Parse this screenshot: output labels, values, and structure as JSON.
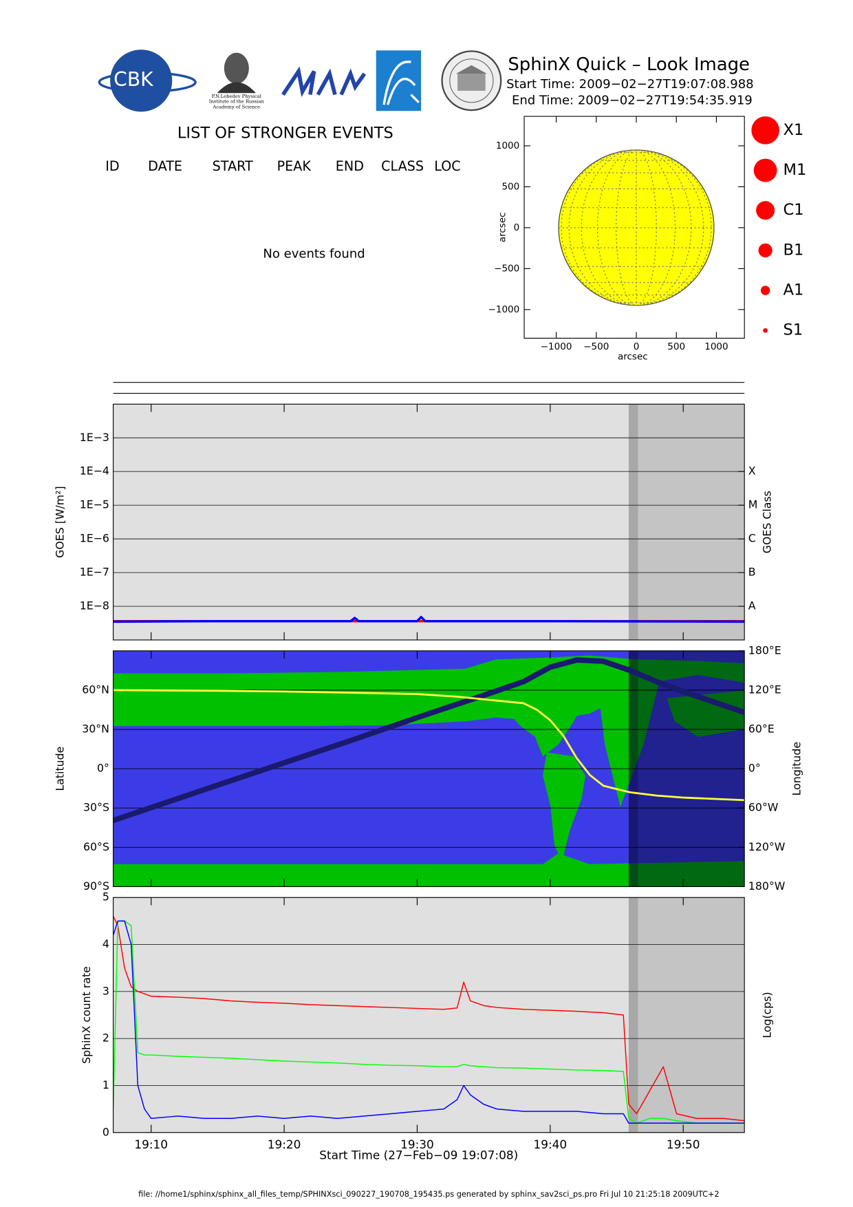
{
  "header": {
    "title": "SphinX Quick – Look Image",
    "start": "Start Time: 2009−02−27T19:07:08.988",
    "end": "End Time: 2009−02−27T19:54:35.919",
    "logo_text": "CBK",
    "lebedev": [
      "P.N.Lebedev Physical",
      "Institute of the Russian",
      "Academy of Science"
    ]
  },
  "events": {
    "heading": "LIST OF STRONGER EVENTS",
    "columns": [
      "ID",
      "DATE",
      "START",
      "PEAK",
      "END",
      "CLASS",
      "LOC"
    ],
    "message": "No events found"
  },
  "footer": "file: //home1/sphinx/sphinx_all_files_temp/SPHINXsci_090227_190708_195435.ps generated by sphinx_sav2sci_ps.pro Fri Jul 10 21:25:18 2009UTC+2",
  "chart_data": [
    {
      "type": "disk",
      "xlabel": "arcsec",
      "ylabel": "arcsec",
      "xlim": [
        -1400,
        1350
      ],
      "ylim": [
        -1350,
        1360
      ],
      "xticks": [
        {
          "value": -1000,
          "label": "−1000"
        },
        {
          "value": -500,
          "label": "−500"
        },
        0,
        500,
        1000
      ],
      "yticks": [
        1000,
        500,
        0,
        {
          "value": -500,
          "label": "−500"
        },
        {
          "value": -1000,
          "label": "−1000"
        }
      ],
      "disk_radius": 970,
      "color": "#ffff00",
      "grid": true,
      "legend": [
        "X1",
        "M1",
        "C1",
        "B1",
        "A1",
        "S1"
      ],
      "legend_color": "#ff0000"
    },
    {
      "type": "line",
      "ylabel": "GOES [W/m²]",
      "y2label": "GOES Class",
      "log_scale": true,
      "grid": true,
      "xlim": [
        7.15,
        54.6
      ],
      "ylim": [
        1e-09,
        0.01
      ],
      "yticks": [
        {
          "value": 0.001,
          "label": "1E−3"
        },
        {
          "value": 0.0001,
          "label": "1E−4"
        },
        {
          "value": 1e-05,
          "label": "1E−5"
        },
        {
          "value": 1e-06,
          "label": "1E−6"
        },
        {
          "value": 1e-07,
          "label": "1E−7"
        },
        {
          "value": 1e-08,
          "label": "1E−8"
        }
      ],
      "y2lim": [
        1e-09,
        0.01
      ],
      "y2ticks": [
        {
          "value": 1e-08,
          "label": "A"
        },
        {
          "value": 1e-07,
          "label": "B"
        },
        {
          "value": 1e-06,
          "label": "C"
        },
        {
          "value": 1e-05,
          "label": "M"
        },
        {
          "value": 0.0001,
          "label": "X"
        }
      ],
      "shade": [
        45.9,
        54.6
      ],
      "dark_band": [
        45.9,
        46.6
      ],
      "x": [
        7.15,
        15,
        25,
        25.3,
        25.6,
        30,
        30.3,
        30.6,
        40,
        54.6
      ],
      "series": [
        {
          "color": "#ff0000",
          "values": [
            3.6e-09,
            3.6e-09,
            3.6e-09,
            3.6e-09,
            3.6e-09,
            3.6e-09,
            3.6e-09,
            3.6e-09,
            3.6e-09,
            3.6e-09
          ]
        },
        {
          "color": "#0000ff",
          "values": [
            3.5e-09,
            3.6e-09,
            3.6e-09,
            4.5e-09,
            3.6e-09,
            3.6e-09,
            4.8e-09,
            3.6e-09,
            3.6e-09,
            3.5e-09
          ]
        }
      ]
    },
    {
      "type": "map",
      "ylabel": "Latitude",
      "y2label": "Longitude",
      "grid": true,
      "xlim": [
        7.15,
        54.6
      ],
      "ylim": [
        -90,
        90
      ],
      "yticks": [
        {
          "value": 60,
          "label": "60°N"
        },
        {
          "value": 30,
          "label": "30°N"
        },
        {
          "value": 0,
          "label": "0°"
        },
        {
          "value": -30,
          "label": "30°S"
        },
        {
          "value": -60,
          "label": "60°S"
        },
        {
          "value": -90,
          "label": "90°S"
        }
      ],
      "y2lim": [
        -180,
        180
      ],
      "y2ticks": [
        {
          "value": 180,
          "label": "180°E"
        },
        {
          "value": 120,
          "label": "120°E"
        },
        {
          "value": 60,
          "label": "60°E"
        },
        {
          "value": 0,
          "label": "0°"
        },
        {
          "value": -60,
          "label": "60°W"
        },
        {
          "value": -120,
          "label": "120°W"
        },
        {
          "value": -180,
          "label": "180°W"
        }
      ],
      "shade": [
        45.9,
        54.6
      ],
      "dark_band": [
        45.9,
        46.6
      ],
      "series": [
        {
          "color": "#1a1a6e",
          "axis": "y2",
          "x": [
            7.15,
            15,
            20,
            25,
            30,
            35,
            38,
            40,
            42,
            44,
            46,
            48,
            50,
            52,
            54.6
          ],
          "values": [
            -79,
            -25,
            9,
            43,
            78,
            112,
            133,
            155,
            166,
            164,
            150,
            133,
            118,
            104,
            86
          ]
        },
        {
          "color": "#ffff40",
          "x": [
            7.15,
            15,
            20,
            25,
            30,
            33,
            35,
            37,
            38,
            39,
            40,
            41,
            42,
            43,
            44,
            46,
            48,
            50,
            54.6
          ],
          "values": [
            60,
            59.5,
            59,
            58,
            57,
            55,
            53,
            51,
            50,
            45,
            37,
            25,
            8,
            -5,
            -13,
            -18,
            -20.5,
            -22,
            -24
          ]
        }
      ]
    },
    {
      "type": "line",
      "xlabel": "Start Time (27−Feb−09 19:07:08)",
      "ylabel": "SphinX count rate",
      "y2label": "Log(cps)",
      "grid": true,
      "xlim": [
        7.15,
        54.6
      ],
      "ylim": [
        0,
        5
      ],
      "yticks": [
        0,
        1,
        2,
        3,
        4,
        5
      ],
      "xticks": [
        {
          "value": 10,
          "label": "19:10"
        },
        {
          "value": 20,
          "label": "19:20"
        },
        {
          "value": 30,
          "label": "19:30"
        },
        {
          "value": 40,
          "label": "19:40"
        },
        {
          "value": 50,
          "label": "19:50"
        }
      ],
      "shade": [
        45.9,
        54.6
      ],
      "dark_band": [
        45.9,
        46.6
      ],
      "x": [
        7.15,
        7.5,
        8,
        8.5,
        9,
        9.5,
        10,
        12,
        14,
        16,
        18,
        20,
        22,
        24,
        26,
        28,
        30,
        32,
        33,
        33.5,
        34,
        35,
        36,
        38,
        40,
        42,
        44,
        45.5,
        45.9,
        46.5,
        47.5,
        48.5,
        49.5,
        51,
        53,
        54.6
      ],
      "series": [
        {
          "color": "#ff0000",
          "values": [
            4.6,
            4.4,
            3.5,
            3.1,
            3.0,
            2.95,
            2.9,
            2.88,
            2.85,
            2.8,
            2.77,
            2.75,
            2.72,
            2.7,
            2.68,
            2.66,
            2.64,
            2.62,
            2.65,
            3.2,
            2.8,
            2.7,
            2.66,
            2.62,
            2.6,
            2.58,
            2.55,
            2.5,
            0.6,
            0.4,
            0.9,
            1.4,
            0.4,
            0.3,
            0.3,
            0.25
          ]
        },
        {
          "color": "#00ff00",
          "values": [
            0.5,
            4.5,
            4.5,
            4.4,
            1.7,
            1.65,
            1.65,
            1.62,
            1.6,
            1.58,
            1.55,
            1.52,
            1.5,
            1.48,
            1.45,
            1.43,
            1.42,
            1.4,
            1.4,
            1.45,
            1.42,
            1.4,
            1.38,
            1.37,
            1.35,
            1.33,
            1.32,
            1.3,
            0.3,
            0.2,
            0.3,
            0.3,
            0.25,
            0.2,
            0.2,
            0.2
          ]
        },
        {
          "color": "#0000ff",
          "values": [
            4.2,
            4.5,
            4.5,
            4.0,
            1.0,
            0.5,
            0.3,
            0.35,
            0.3,
            0.3,
            0.35,
            0.3,
            0.35,
            0.3,
            0.35,
            0.4,
            0.45,
            0.5,
            0.7,
            1.0,
            0.8,
            0.6,
            0.5,
            0.45,
            0.45,
            0.45,
            0.4,
            0.4,
            0.2,
            0.2,
            0.2,
            0.2,
            0.2,
            0.2,
            0.2,
            0.2
          ]
        }
      ]
    }
  ]
}
